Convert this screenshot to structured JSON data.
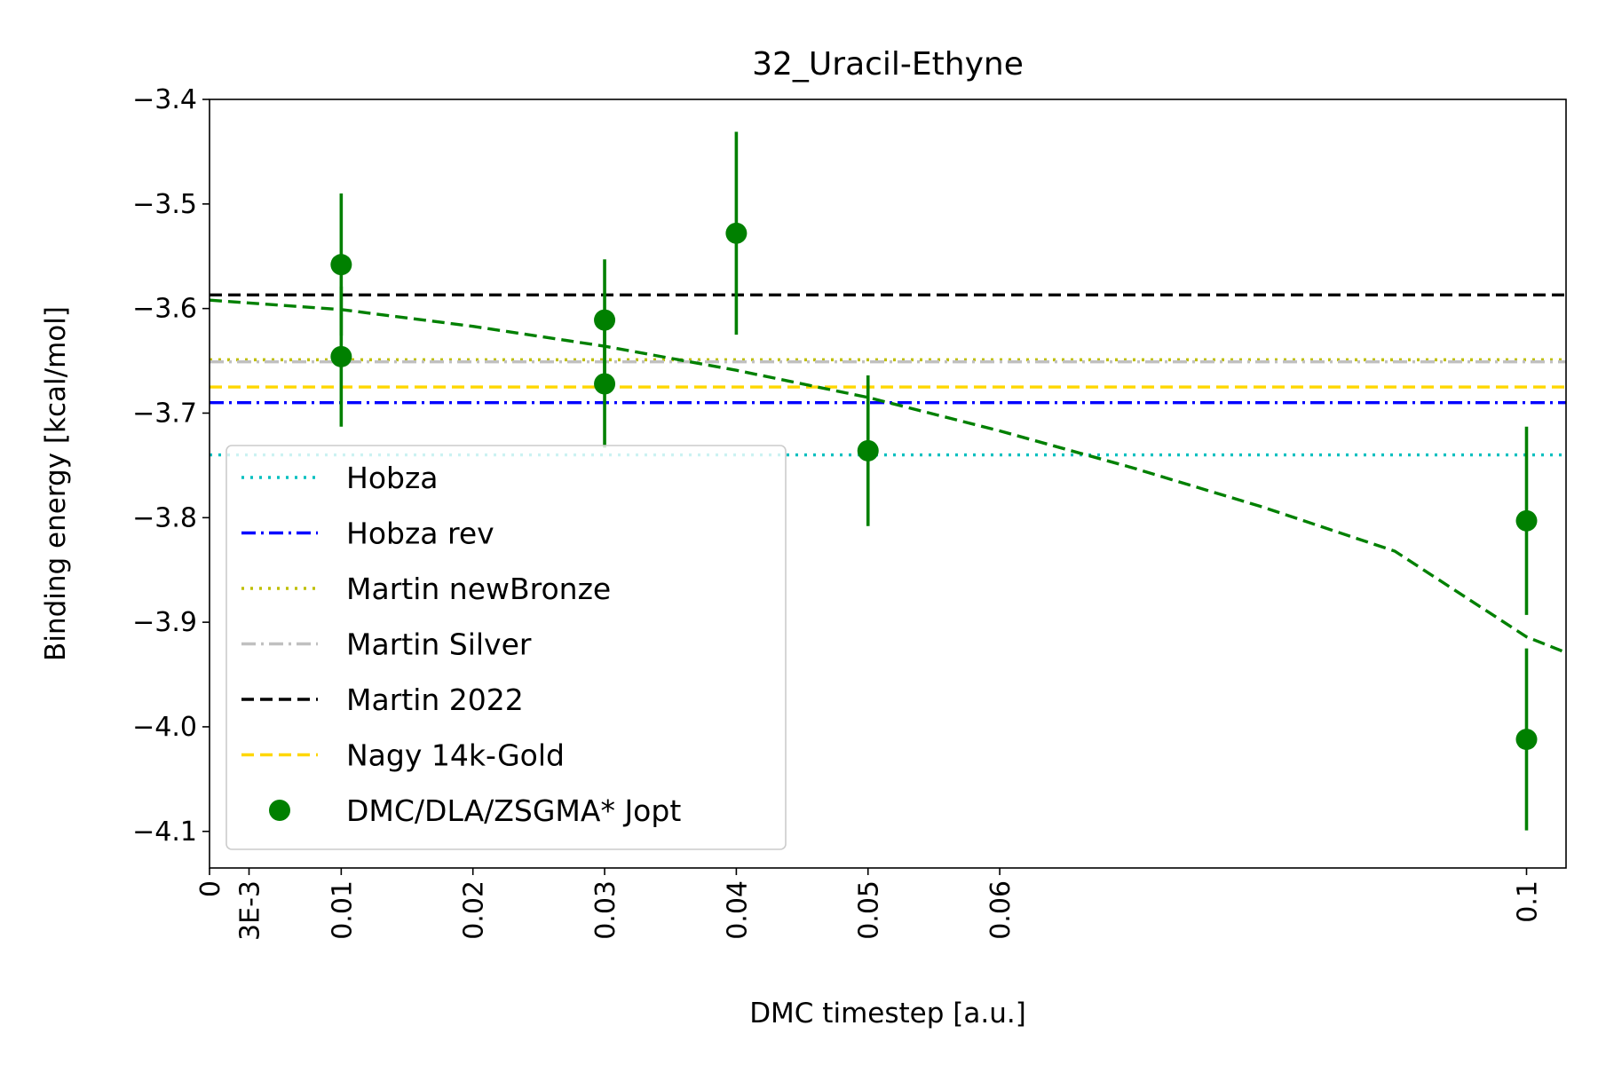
{
  "chart_data": {
    "type": "scatter",
    "title": "32_Uracil-Ethyne",
    "xlabel": "DMC timestep [a.u.]",
    "ylabel": "Binding energy [kcal/mol]",
    "xlim": [
      0,
      0.103
    ],
    "ylim": [
      -4.135,
      -3.4
    ],
    "x_ticks": [
      {
        "value": 0,
        "label": "0"
      },
      {
        "value": 0.003,
        "label": "3E-3"
      },
      {
        "value": 0.01,
        "label": "0.01"
      },
      {
        "value": 0.02,
        "label": "0.02"
      },
      {
        "value": 0.03,
        "label": "0.03"
      },
      {
        "value": 0.04,
        "label": "0.04"
      },
      {
        "value": 0.05,
        "label": "0.05"
      },
      {
        "value": 0.06,
        "label": "0.06"
      },
      {
        "value": 0.1,
        "label": "0.1"
      }
    ],
    "y_ticks": [
      {
        "value": -3.4,
        "label": "−3.4"
      },
      {
        "value": -3.5,
        "label": "−3.5"
      },
      {
        "value": -3.6,
        "label": "−3.6"
      },
      {
        "value": -3.7,
        "label": "−3.7"
      },
      {
        "value": -3.8,
        "label": "−3.8"
      },
      {
        "value": -3.9,
        "label": "−3.9"
      },
      {
        "value": -4.0,
        "label": "−4.0"
      },
      {
        "value": -4.1,
        "label": "−4.1"
      }
    ],
    "reference_lines": [
      {
        "name": "Hobza",
        "y": -3.74,
        "color": "#00bfbf",
        "dash": "dotted"
      },
      {
        "name": "Hobza rev",
        "y": -3.69,
        "color": "#0000ff",
        "dash": "dashdot"
      },
      {
        "name": "Martin newBronze",
        "y": -3.649,
        "color": "#bfbf00",
        "dash": "dotted"
      },
      {
        "name": "Martin Silver",
        "y": -3.651,
        "color": "#c0c0c0",
        "dash": "dashdot"
      },
      {
        "name": "Martin 2022",
        "y": -3.587,
        "color": "#000000",
        "dash": "dashed"
      },
      {
        "name": "Nagy 14k-Gold",
        "y": -3.675,
        "color": "#ffd700",
        "dash": "dashed"
      }
    ],
    "series": [
      {
        "name": "DMC/DLA/ZSGMA* Jopt",
        "color": "#008000",
        "points": [
          {
            "x": 0.01,
            "y": -3.558,
            "err": 0.068
          },
          {
            "x": 0.01,
            "y": -3.646,
            "err": 0.067
          },
          {
            "x": 0.03,
            "y": -3.611,
            "err": 0.058
          },
          {
            "x": 0.03,
            "y": -3.672,
            "err": 0.061
          },
          {
            "x": 0.04,
            "y": -3.528,
            "err": 0.097
          },
          {
            "x": 0.05,
            "y": -3.736,
            "err": 0.072
          },
          {
            "x": 0.1,
            "y": -3.803,
            "err": 0.09
          },
          {
            "x": 0.1,
            "y": -4.012,
            "err": 0.087
          }
        ]
      }
    ],
    "fit": {
      "color": "#008000",
      "dash": "dashed",
      "x": [
        0,
        0.01,
        0.02,
        0.03,
        0.04,
        0.05,
        0.06,
        0.07,
        0.08,
        0.09,
        0.1,
        0.103
      ],
      "y": [
        -3.592,
        -3.601,
        -3.617,
        -3.636,
        -3.659,
        -3.685,
        -3.717,
        -3.752,
        -3.79,
        -3.832,
        -3.914,
        -3.929
      ]
    },
    "legend": {
      "position": "lower-left"
    }
  }
}
